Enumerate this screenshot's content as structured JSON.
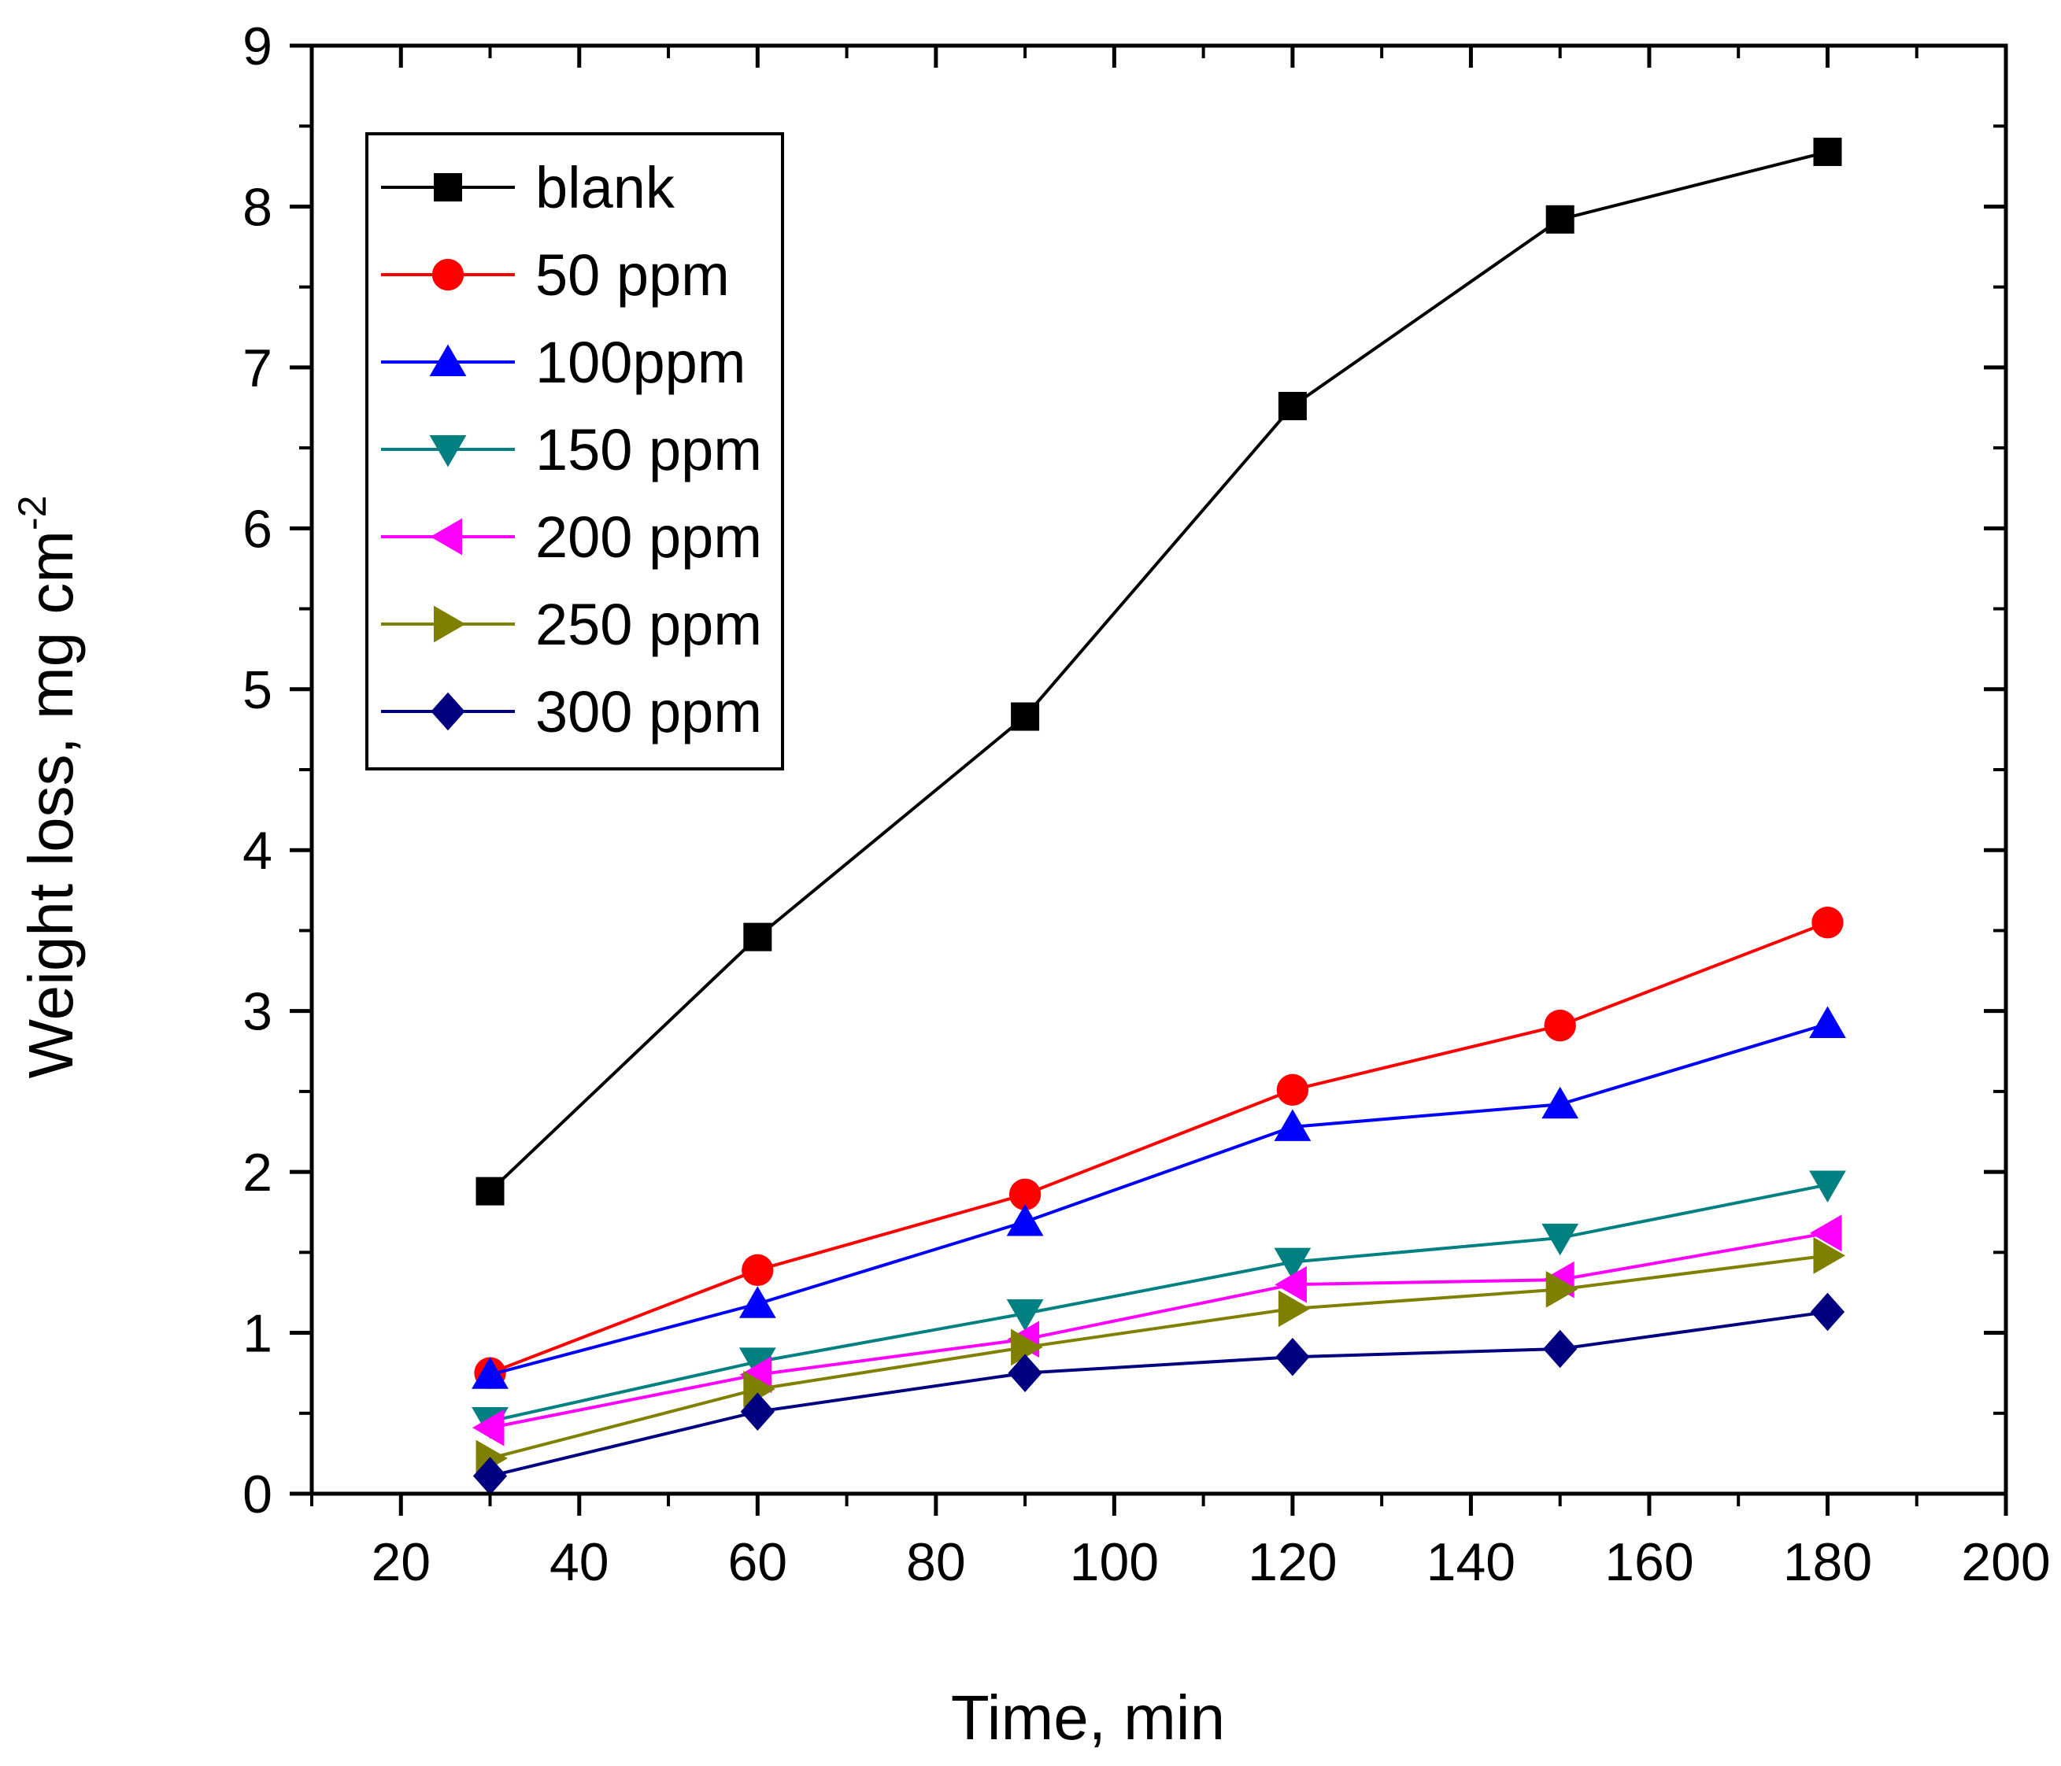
{
  "chart_data": {
    "type": "line",
    "title": "",
    "xlabel": "Time, min",
    "ylabel": "Weight loss, mg cm",
    "ylabel_superscript": "-2",
    "xlim": [
      10,
      200
    ],
    "ylim": [
      0,
      9
    ],
    "x_ticks": [
      20,
      40,
      60,
      80,
      100,
      120,
      140,
      160,
      180,
      200
    ],
    "y_ticks": [
      0,
      1,
      2,
      3,
      4,
      5,
      6,
      7,
      8,
      9
    ],
    "grid": false,
    "legend_position": "top-left",
    "x": [
      30,
      60,
      90,
      120,
      150,
      180
    ],
    "series": [
      {
        "name": "blank",
        "color": "#000000",
        "marker": "square",
        "values": [
          1.88,
          3.46,
          4.83,
          6.76,
          7.92,
          8.34
        ]
      },
      {
        "name": "50 ppm",
        "color": "#ff0000",
        "marker": "circle",
        "values": [
          0.75,
          1.39,
          1.86,
          2.51,
          2.91,
          3.55
        ]
      },
      {
        "name": "100ppm",
        "color": "#0000ff",
        "marker": "triangle-up",
        "values": [
          0.74,
          1.18,
          1.69,
          2.28,
          2.42,
          2.92
        ]
      },
      {
        "name": "150 ppm",
        "color": "#008080",
        "marker": "triangle-down",
        "values": [
          0.45,
          0.82,
          1.12,
          1.44,
          1.59,
          1.92
        ]
      },
      {
        "name": "200 ppm",
        "color": "#ff00ff",
        "marker": "triangle-left",
        "values": [
          0.41,
          0.74,
          0.96,
          1.3,
          1.33,
          1.62
        ]
      },
      {
        "name": "250 ppm",
        "color": "#808000",
        "marker": "triangle-right",
        "values": [
          0.22,
          0.65,
          0.91,
          1.15,
          1.27,
          1.48
        ]
      },
      {
        "name": "300 ppm",
        "color": "#000080",
        "marker": "diamond",
        "values": [
          0.11,
          0.51,
          0.75,
          0.85,
          0.9,
          1.13
        ]
      }
    ]
  }
}
